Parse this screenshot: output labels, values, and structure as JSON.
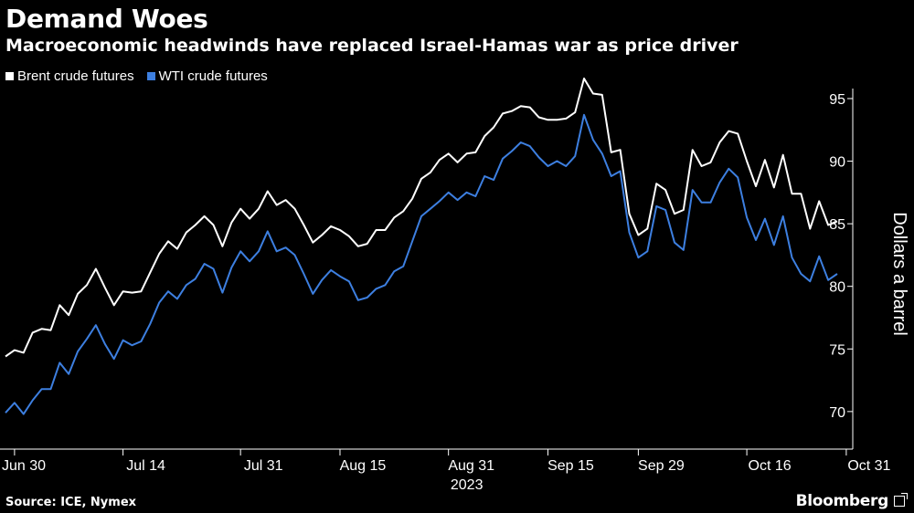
{
  "header": {
    "title": "Demand Woes",
    "subtitle": "Macroeconomic headwinds have replaced Israel-Hamas war as price driver"
  },
  "footer": {
    "source": "Source: ICE, Nymex",
    "brand": "Bloomberg"
  },
  "colors": {
    "background": "#000000",
    "brent": "#ffffff",
    "wti": "#3d7fe0"
  },
  "chart_data": {
    "type": "line",
    "title": "Demand Woes",
    "subtitle": "Macroeconomic headwinds have replaced Israel-Hamas war as price driver",
    "xlabel": "",
    "ylabel": "Dollars a barrel",
    "x_ticks": [
      "Jun 30",
      "Jul 14",
      "Jul 31",
      "Aug 15",
      "Aug 31",
      "Sep 15",
      "Sep 29",
      "Oct 16",
      "Oct 31"
    ],
    "x_tick_index": [
      1,
      13,
      26,
      37,
      49,
      60,
      70,
      82,
      93
    ],
    "year_label": "2023",
    "ylim": [
      67,
      95.8
    ],
    "y_ticks": [
      70,
      75,
      80,
      85,
      90,
      95
    ],
    "grid": false,
    "legend_position": "top-left",
    "series": [
      {
        "name": "Brent crude futures",
        "color": "#ffffff",
        "values": [
          74.4,
          74.9,
          74.7,
          76.3,
          76.6,
          76.5,
          78.5,
          77.7,
          79.4,
          80.1,
          81.4,
          79.9,
          78.5,
          79.6,
          79.5,
          79.6,
          81.1,
          82.6,
          83.6,
          83.0,
          84.3,
          84.9,
          85.6,
          84.9,
          83.2,
          85.1,
          86.2,
          85.4,
          86.2,
          87.6,
          86.5,
          86.9,
          86.2,
          84.9,
          83.5,
          84.1,
          84.8,
          84.5,
          84.0,
          83.2,
          83.4,
          84.5,
          84.5,
          85.5,
          86.0,
          87.0,
          88.6,
          89.1,
          90.1,
          90.6,
          89.9,
          90.6,
          90.7,
          92.0,
          92.7,
          93.8,
          94.0,
          94.4,
          94.3,
          93.5,
          93.3,
          93.3,
          93.4,
          93.9,
          96.6,
          95.4,
          95.3,
          90.7,
          90.9,
          85.8,
          84.1,
          84.6,
          88.2,
          87.7,
          85.8,
          86.1,
          90.9,
          89.6,
          89.9,
          91.5,
          92.4,
          92.2,
          90.0,
          88.0,
          90.1,
          87.9,
          90.5,
          87.4,
          87.4,
          84.6,
          86.8,
          84.9,
          85.2
        ]
      },
      {
        "name": "WTI crude futures",
        "color": "#3d7fe0",
        "values": [
          69.9,
          70.7,
          69.8,
          70.9,
          71.8,
          71.8,
          73.9,
          73.0,
          74.8,
          75.8,
          76.9,
          75.4,
          74.2,
          75.7,
          75.3,
          75.6,
          77.0,
          78.7,
          79.6,
          79.0,
          80.1,
          80.6,
          81.8,
          81.4,
          79.5,
          81.5,
          82.8,
          82.0,
          82.8,
          84.4,
          82.8,
          83.1,
          82.5,
          81.0,
          79.4,
          80.5,
          81.3,
          80.8,
          80.4,
          78.9,
          79.1,
          79.8,
          80.1,
          81.2,
          81.6,
          83.6,
          85.6,
          86.2,
          86.8,
          87.5,
          86.9,
          87.5,
          87.2,
          88.8,
          88.5,
          90.2,
          90.8,
          91.5,
          91.2,
          90.3,
          89.6,
          90.0,
          89.6,
          90.4,
          93.7,
          91.7,
          90.6,
          88.8,
          89.2,
          84.3,
          82.3,
          82.8,
          86.4,
          86.1,
          83.5,
          82.9,
          87.7,
          86.7,
          86.7,
          88.3,
          89.4,
          88.7,
          85.5,
          83.7,
          85.4,
          83.3,
          85.6,
          82.3,
          81.0,
          80.4,
          82.4,
          80.5,
          81.0
        ]
      }
    ]
  }
}
